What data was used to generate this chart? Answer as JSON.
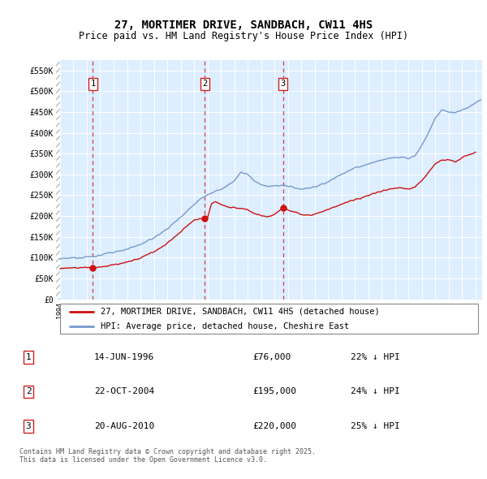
{
  "title": "27, MORTIMER DRIVE, SANDBACH, CW11 4HS",
  "subtitle": "Price paid vs. HM Land Registry's House Price Index (HPI)",
  "ylabel_ticks": [
    "£0",
    "£50K",
    "£100K",
    "£150K",
    "£200K",
    "£250K",
    "£300K",
    "£350K",
    "£400K",
    "£450K",
    "£500K",
    "£550K"
  ],
  "ytick_vals": [
    0,
    50000,
    100000,
    150000,
    200000,
    250000,
    300000,
    350000,
    400000,
    450000,
    500000,
    550000
  ],
  "ylim": [
    0,
    575000
  ],
  "xlim_start": 1993.7,
  "xlim_end": 2025.5,
  "hpi_color": "#7799cc",
  "price_color": "#cc1111",
  "vline_color": "#cc2222",
  "bg_plot": "#ddeeff",
  "legend_line1": "27, MORTIMER DRIVE, SANDBACH, CW11 4HS (detached house)",
  "legend_line2": "HPI: Average price, detached house, Cheshire East",
  "sale1_label": "1",
  "sale1_date": "14-JUN-1996",
  "sale1_price": "£76,000",
  "sale1_hpi": "22% ↓ HPI",
  "sale1_year": 1996.45,
  "sale1_value": 76000,
  "sale2_label": "2",
  "sale2_date": "22-OCT-2004",
  "sale2_price": "£195,000",
  "sale2_hpi": "24% ↓ HPI",
  "sale2_year": 2004.8,
  "sale2_value": 195000,
  "sale3_label": "3",
  "sale3_date": "20-AUG-2010",
  "sale3_price": "£220,000",
  "sale3_hpi": "25% ↓ HPI",
  "sale3_year": 2010.63,
  "sale3_value": 220000,
  "footnote": "Contains HM Land Registry data © Crown copyright and database right 2025.\nThis data is licensed under the Open Government Licence v3.0."
}
